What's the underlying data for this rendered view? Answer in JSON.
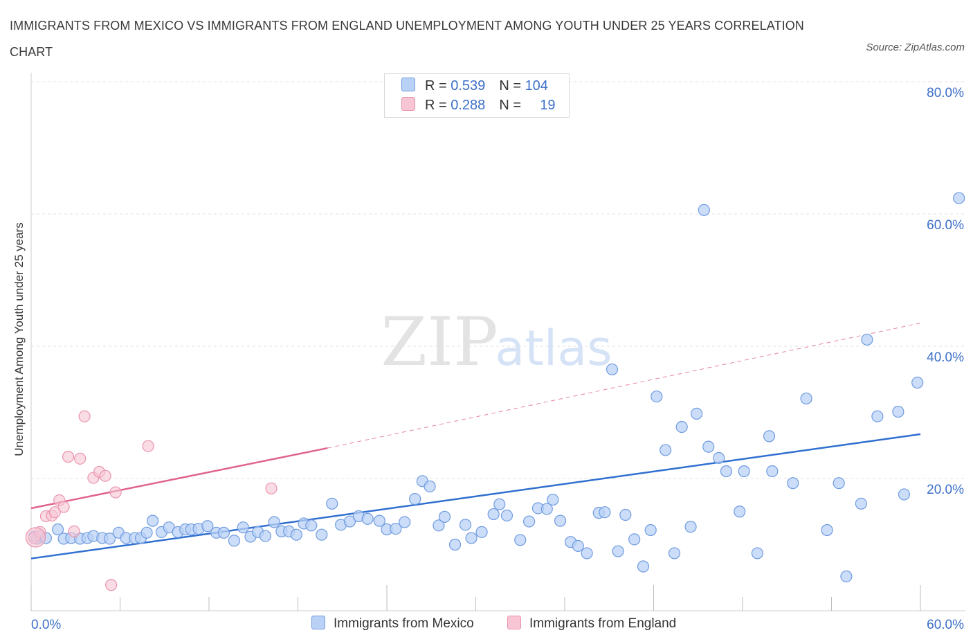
{
  "title": "IMMIGRANTS FROM MEXICO VS IMMIGRANTS FROM ENGLAND UNEMPLOYMENT AMONG YOUTH UNDER 25 YEARS CORRELATION CHART",
  "source": "Source: ZipAtlas.com",
  "watermark": {
    "zip": "ZIP",
    "atlas": "atlas"
  },
  "colors": {
    "mexico": "#6f9be0",
    "mexico_fill": "#b9d1f5",
    "mexico_line": "#2f6fd0",
    "england": "#ea93ad",
    "england_fill": "#f7c5d4",
    "england_line": "#e0648c",
    "axis_text": "#3b6fc8"
  },
  "legend": {
    "mexico": {
      "r_label": "R = ",
      "r_value": "0.539",
      "n_label": "N = ",
      "n_value": "104"
    },
    "england": {
      "r_label": "R = ",
      "r_value": "0.288",
      "n_label": "N = ",
      "n_value": "19"
    }
  },
  "chart_data": {
    "type": "scatter",
    "title": "IMMIGRANTS FROM MEXICO VS IMMIGRANTS FROM ENGLAND UNEMPLOYMENT AMONG YOUTH UNDER 25 YEARS CORRELATION CHART",
    "xlabel": "",
    "ylabel": "Unemployment Among Youth under 25 years",
    "xlim": [
      0,
      60
    ],
    "ylim": [
      0,
      80
    ],
    "x_tick_labels": [
      {
        "value": 0,
        "label": "0.0%"
      },
      {
        "value": 60,
        "label": "60.0%"
      }
    ],
    "y_tick_labels": [
      {
        "value": 20,
        "label": "20.0%"
      },
      {
        "value": 40,
        "label": "40.0%"
      },
      {
        "value": 60,
        "label": "60.0%"
      },
      {
        "value": 80,
        "label": "80.0%"
      }
    ],
    "grid": true,
    "legend_position": "top-center",
    "series": [
      {
        "name": "Immigrants from Mexico",
        "R": 0.539,
        "N": 104,
        "trend": {
          "x": [
            0,
            60
          ],
          "y": [
            7.9,
            26.7
          ],
          "style": "solid"
        },
        "points": [
          [
            0.2,
            11.2
          ],
          [
            0.4,
            10.9
          ],
          [
            0.6,
            11.3
          ],
          [
            1.0,
            11.0
          ],
          [
            1.8,
            12.3
          ],
          [
            2.2,
            10.9
          ],
          [
            2.7,
            11.0
          ],
          [
            3.3,
            10.9
          ],
          [
            3.8,
            11.0
          ],
          [
            4.2,
            11.3
          ],
          [
            4.8,
            11.0
          ],
          [
            5.3,
            10.9
          ],
          [
            5.9,
            11.8
          ],
          [
            6.4,
            11.0
          ],
          [
            7.0,
            11.0
          ],
          [
            7.4,
            11.0
          ],
          [
            7.8,
            11.8
          ],
          [
            8.2,
            13.6
          ],
          [
            8.8,
            11.9
          ],
          [
            9.3,
            12.6
          ],
          [
            9.9,
            11.9
          ],
          [
            10.4,
            12.3
          ],
          [
            10.8,
            12.3
          ],
          [
            11.3,
            12.4
          ],
          [
            11.9,
            12.8
          ],
          [
            12.5,
            11.8
          ],
          [
            13.0,
            11.8
          ],
          [
            13.7,
            10.6
          ],
          [
            14.3,
            12.6
          ],
          [
            14.8,
            11.2
          ],
          [
            15.3,
            11.9
          ],
          [
            15.8,
            11.3
          ],
          [
            16.4,
            13.4
          ],
          [
            16.9,
            12.0
          ],
          [
            17.4,
            12.0
          ],
          [
            17.9,
            11.5
          ],
          [
            18.4,
            13.2
          ],
          [
            18.9,
            12.9
          ],
          [
            19.6,
            11.5
          ],
          [
            20.3,
            16.2
          ],
          [
            20.9,
            13.0
          ],
          [
            21.5,
            13.5
          ],
          [
            22.1,
            14.3
          ],
          [
            22.7,
            13.9
          ],
          [
            23.5,
            13.6
          ],
          [
            24.0,
            12.3
          ],
          [
            24.6,
            12.4
          ],
          [
            25.2,
            13.4
          ],
          [
            25.9,
            16.9
          ],
          [
            26.4,
            19.6
          ],
          [
            26.9,
            18.8
          ],
          [
            27.5,
            12.9
          ],
          [
            27.9,
            14.2
          ],
          [
            28.6,
            10.0
          ],
          [
            29.3,
            13.0
          ],
          [
            29.7,
            11.0
          ],
          [
            30.4,
            11.9
          ],
          [
            31.2,
            14.6
          ],
          [
            31.6,
            16.1
          ],
          [
            32.1,
            14.4
          ],
          [
            33.0,
            10.7
          ],
          [
            33.6,
            13.5
          ],
          [
            34.2,
            15.5
          ],
          [
            34.8,
            15.4
          ],
          [
            35.2,
            16.8
          ],
          [
            35.7,
            13.6
          ],
          [
            36.4,
            10.4
          ],
          [
            36.9,
            9.8
          ],
          [
            37.5,
            8.7
          ],
          [
            38.3,
            14.8
          ],
          [
            38.7,
            14.9
          ],
          [
            39.2,
            36.5
          ],
          [
            39.6,
            9.0
          ],
          [
            40.1,
            14.5
          ],
          [
            40.7,
            10.8
          ],
          [
            41.3,
            6.7
          ],
          [
            41.8,
            12.2
          ],
          [
            42.2,
            32.4
          ],
          [
            42.8,
            24.3
          ],
          [
            43.4,
            8.7
          ],
          [
            43.9,
            27.8
          ],
          [
            44.5,
            12.7
          ],
          [
            44.9,
            29.8
          ],
          [
            45.4,
            60.6
          ],
          [
            45.7,
            24.8
          ],
          [
            46.4,
            23.1
          ],
          [
            46.9,
            21.1
          ],
          [
            47.8,
            15.0
          ],
          [
            48.1,
            21.1
          ],
          [
            49.0,
            8.7
          ],
          [
            49.8,
            26.4
          ],
          [
            50.0,
            21.1
          ],
          [
            51.4,
            19.3
          ],
          [
            52.3,
            32.1
          ],
          [
            53.7,
            12.2
          ],
          [
            54.5,
            19.3
          ],
          [
            55.0,
            5.2
          ],
          [
            56.0,
            16.2
          ],
          [
            56.4,
            41.0
          ],
          [
            57.1,
            29.4
          ],
          [
            58.5,
            30.1
          ],
          [
            58.9,
            17.6
          ],
          [
            59.8,
            34.5
          ],
          [
            62.6,
            62.4
          ]
        ]
      },
      {
        "name": "Immigrants from England",
        "R": 0.288,
        "N": 19,
        "trend": {
          "x": [
            0,
            20
          ],
          "y": [
            15.5,
            24.6
          ],
          "style": "solid"
        },
        "trend_extension": {
          "x": [
            20,
            60
          ],
          "y": [
            24.6,
            43.5
          ],
          "style": "dashed"
        },
        "points": [
          [
            0.2,
            11.0
          ],
          [
            0.6,
            11.9
          ],
          [
            1.0,
            14.3
          ],
          [
            1.4,
            14.4
          ],
          [
            1.6,
            14.9
          ],
          [
            1.9,
            16.7
          ],
          [
            2.2,
            15.7
          ],
          [
            2.5,
            23.3
          ],
          [
            2.9,
            12.0
          ],
          [
            3.3,
            23.0
          ],
          [
            3.6,
            29.4
          ],
          [
            4.2,
            20.1
          ],
          [
            4.6,
            21.0
          ],
          [
            5.0,
            20.4
          ],
          [
            5.4,
            3.9
          ],
          [
            5.7,
            17.9
          ],
          [
            7.9,
            24.9
          ],
          [
            16.2,
            18.5
          ],
          [
            0.3,
            11.1
          ]
        ]
      }
    ]
  },
  "bottom_legend": {
    "mexico": "Immigrants from Mexico",
    "england": "Immigrants from England"
  }
}
